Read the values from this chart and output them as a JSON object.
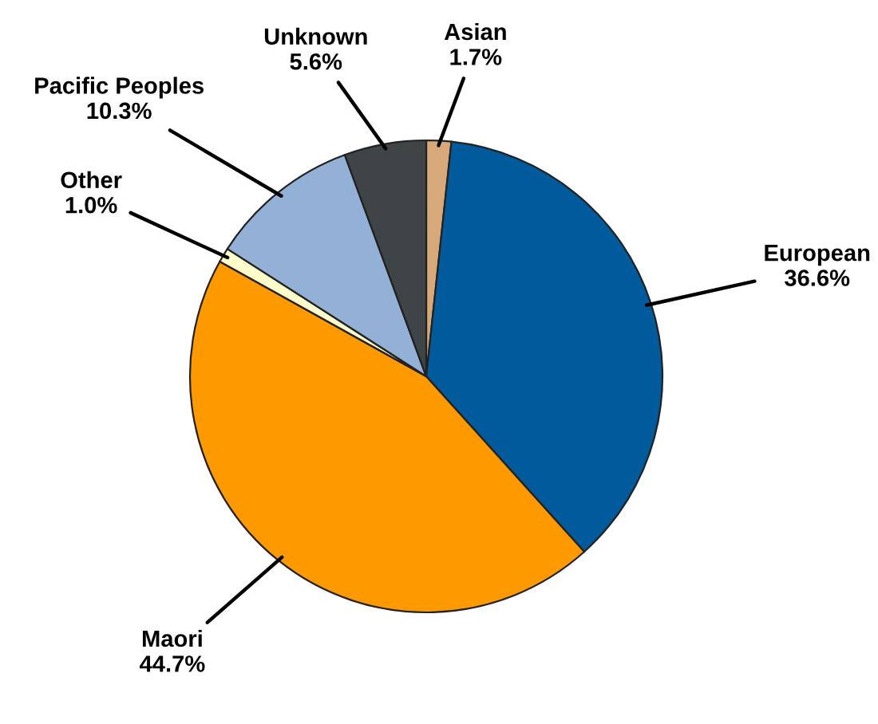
{
  "chart_data": {
    "type": "pie",
    "categories": [
      "Asian",
      "European",
      "Maori",
      "Other",
      "Pacific Peoples",
      "Unknown"
    ],
    "values": [
      1.7,
      36.6,
      44.7,
      1.0,
      10.3,
      5.6
    ],
    "value_labels": [
      "1.7%",
      "36.6%",
      "44.7%",
      "1.0%",
      "10.3%",
      "5.6%"
    ],
    "colors": [
      "#d7a97a",
      "#005a9c",
      "#ff9900",
      "#ffffcc",
      "#93b1d6",
      "#3f4447"
    ],
    "legend": false
  }
}
